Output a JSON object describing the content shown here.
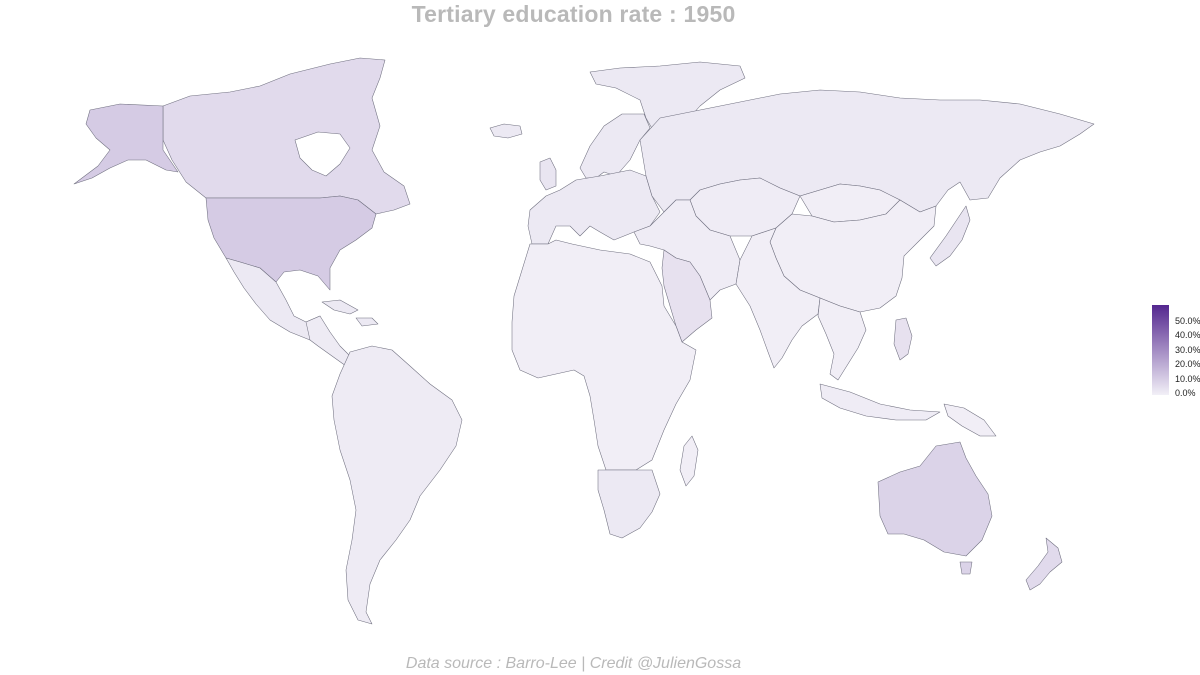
{
  "title": "Tertiary education rate : 1950",
  "caption": "Data source : Barro-Lee | Credit @JulienGossa",
  "colors": {
    "low": "#f2f0f7",
    "high": "#54278f",
    "title_text": "#b9b9b9",
    "border": "#6f6f7f"
  },
  "legend": {
    "min": 0,
    "max": 55,
    "labels": [
      "50.0%",
      "40.0%",
      "30.0%",
      "20.0%",
      "10.0%",
      "0.0%"
    ]
  },
  "regions": [
    {
      "name": "Canada",
      "rate": 6
    },
    {
      "name": "United States",
      "rate": 10
    },
    {
      "name": "Mexico",
      "rate": 2
    },
    {
      "name": "Central America",
      "rate": 1.5
    },
    {
      "name": "Cuba",
      "rate": 2
    },
    {
      "name": "Greenland",
      "rate": 2
    },
    {
      "name": "South America",
      "rate": 1.5
    },
    {
      "name": "Europe",
      "rate": 2
    },
    {
      "name": "Russia",
      "rate": 2
    },
    {
      "name": "Middle East",
      "rate": 1
    },
    {
      "name": "Saudi Arabia",
      "rate": 4
    },
    {
      "name": "Africa",
      "rate": 0.5
    },
    {
      "name": "Southern Africa",
      "rate": 2
    },
    {
      "name": "Madagascar",
      "rate": 0.5
    },
    {
      "name": "Central Asia",
      "rate": 1
    },
    {
      "name": "South Asia",
      "rate": 0.5
    },
    {
      "name": "China",
      "rate": 0.5
    },
    {
      "name": "Mongolia",
      "rate": 0.5
    },
    {
      "name": "Japan",
      "rate": 3
    },
    {
      "name": "Southeast Asia",
      "rate": 0.5
    },
    {
      "name": "Indonesia",
      "rate": 1
    },
    {
      "name": "Papua New Guinea",
      "rate": 0.5
    },
    {
      "name": "Australia",
      "rate": 8
    },
    {
      "name": "New Zealand",
      "rate": 6
    },
    {
      "name": "Iceland",
      "rate": 2
    },
    {
      "name": "United Kingdom",
      "rate": 3
    },
    {
      "name": "Scandinavia",
      "rate": 2
    },
    {
      "name": "Caribbean",
      "rate": 2
    },
    {
      "name": "Philippines",
      "rate": 4
    }
  ]
}
